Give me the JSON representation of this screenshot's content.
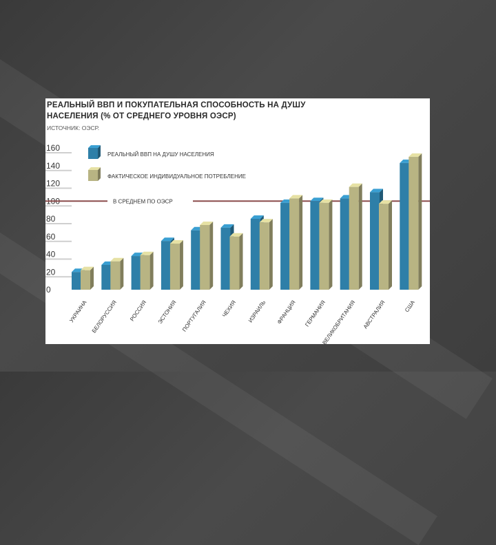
{
  "chart_data": {
    "type": "bar",
    "title_line1": "РЕАЛЬНЫЙ ВВП И ПОКУПАТЕЛЬНАЯ СПОСОБНОСТЬ НА ДУШУ",
    "title_line2": "НАСЕЛЕНИЯ (% ОТ СРЕДНЕГО УРОВНЯ ОЭСР)",
    "source": "ИСТОЧНИК: ОЭСР.",
    "categories": [
      "УКРАИНА",
      "БЕЛОРУССИЯ",
      "РОССИЯ",
      "ЭСТОНИЯ",
      "ПОРТУГАЛИЯ",
      "ЧЕХИЯ",
      "ИЗРАИЛЬ",
      "ФРАНЦИЯ",
      "ГЕРМАНИЯ",
      "ВЕЛИКОБРИТАНИЯ",
      "АВСТРАЛИЯ",
      "США"
    ],
    "series": [
      {
        "name": "РЕАЛЬНЫЙ ВВП НА ДУШУ НАСЕЛЕНИЯ",
        "color": "#2e7fa8",
        "values": [
          20,
          28,
          38,
          55,
          67,
          70,
          80,
          98,
          100,
          103,
          110,
          143
        ]
      },
      {
        "name": "ФАКТИЧЕСКОЕ ИНДИВИДУАЛЬНОЕ ПОТРЕБЛЕНИЕ",
        "color": "#b8b483",
        "values": [
          22,
          32,
          39,
          52,
          73,
          60,
          76,
          103,
          98,
          116,
          97,
          150
        ]
      }
    ],
    "yticks": [
      0,
      20,
      40,
      60,
      80,
      100,
      120,
      140,
      160
    ],
    "ylim": [
      0,
      160
    ],
    "average_line": {
      "value": 100,
      "label": "В СРЕДНЕМ ПО ОЭСР",
      "color": "#8a4a4a"
    },
    "legend_position": "top-left"
  }
}
